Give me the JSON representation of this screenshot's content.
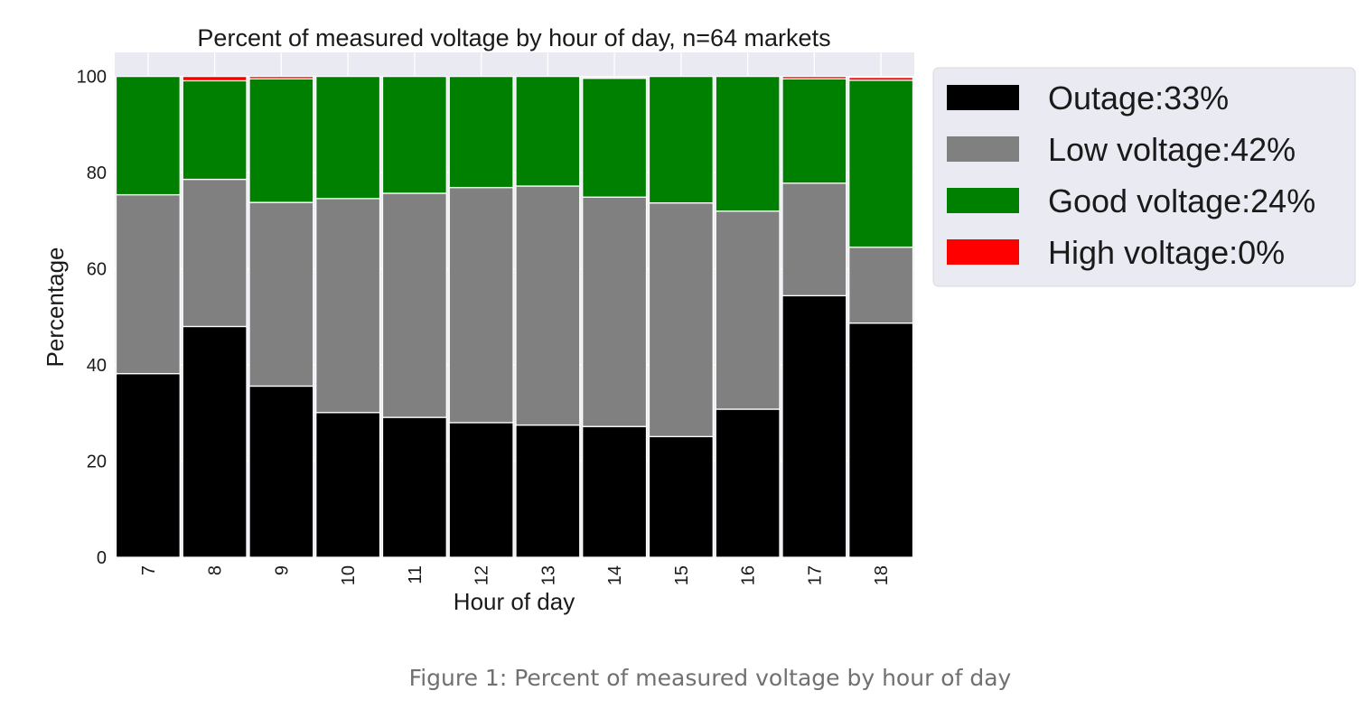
{
  "chart_data": {
    "type": "bar",
    "stacked": true,
    "title": "Percent of measured voltage by hour of day, n=64 markets",
    "xlabel": "Hour of day",
    "ylabel": "Percentage",
    "ylim": [
      0,
      105
    ],
    "yticks": [
      "0",
      "20",
      "40",
      "60",
      "80",
      "100"
    ],
    "grid": true,
    "legend_position": "right",
    "categories": [
      "7",
      "8",
      "9",
      "10",
      "11",
      "12",
      "13",
      "14",
      "15",
      "16",
      "17",
      "18"
    ],
    "series": [
      {
        "name": "Outage:33%",
        "color": "#000000",
        "values": [
          38.2,
          48.0,
          35.6,
          30.1,
          29.1,
          28.0,
          27.5,
          27.2,
          25.1,
          30.8,
          54.4,
          48.7
        ]
      },
      {
        "name": "Low voltage:42%",
        "color": "#808080",
        "values": [
          37.2,
          30.6,
          38.2,
          44.5,
          46.6,
          48.9,
          49.7,
          47.7,
          48.6,
          41.2,
          23.4,
          15.8
        ]
      },
      {
        "name": "Good voltage:24%",
        "color": "#008000",
        "values": [
          24.6,
          20.5,
          25.7,
          25.4,
          24.3,
          23.1,
          22.8,
          24.7,
          26.3,
          28.0,
          21.7,
          34.7
        ]
      },
      {
        "name": "High voltage:0%",
        "color": "#ff0000",
        "values": [
          0.0,
          0.9,
          0.5,
          0.0,
          0.0,
          0.0,
          0.0,
          0.0,
          0.0,
          0.0,
          0.5,
          0.6
        ]
      }
    ]
  },
  "caption": "Figure 1: Percent of measured voltage by hour of day",
  "colors": {
    "plot_background": "#eaeaf2",
    "grid": "#ffffff",
    "legend_background": "#eaeaf2"
  }
}
